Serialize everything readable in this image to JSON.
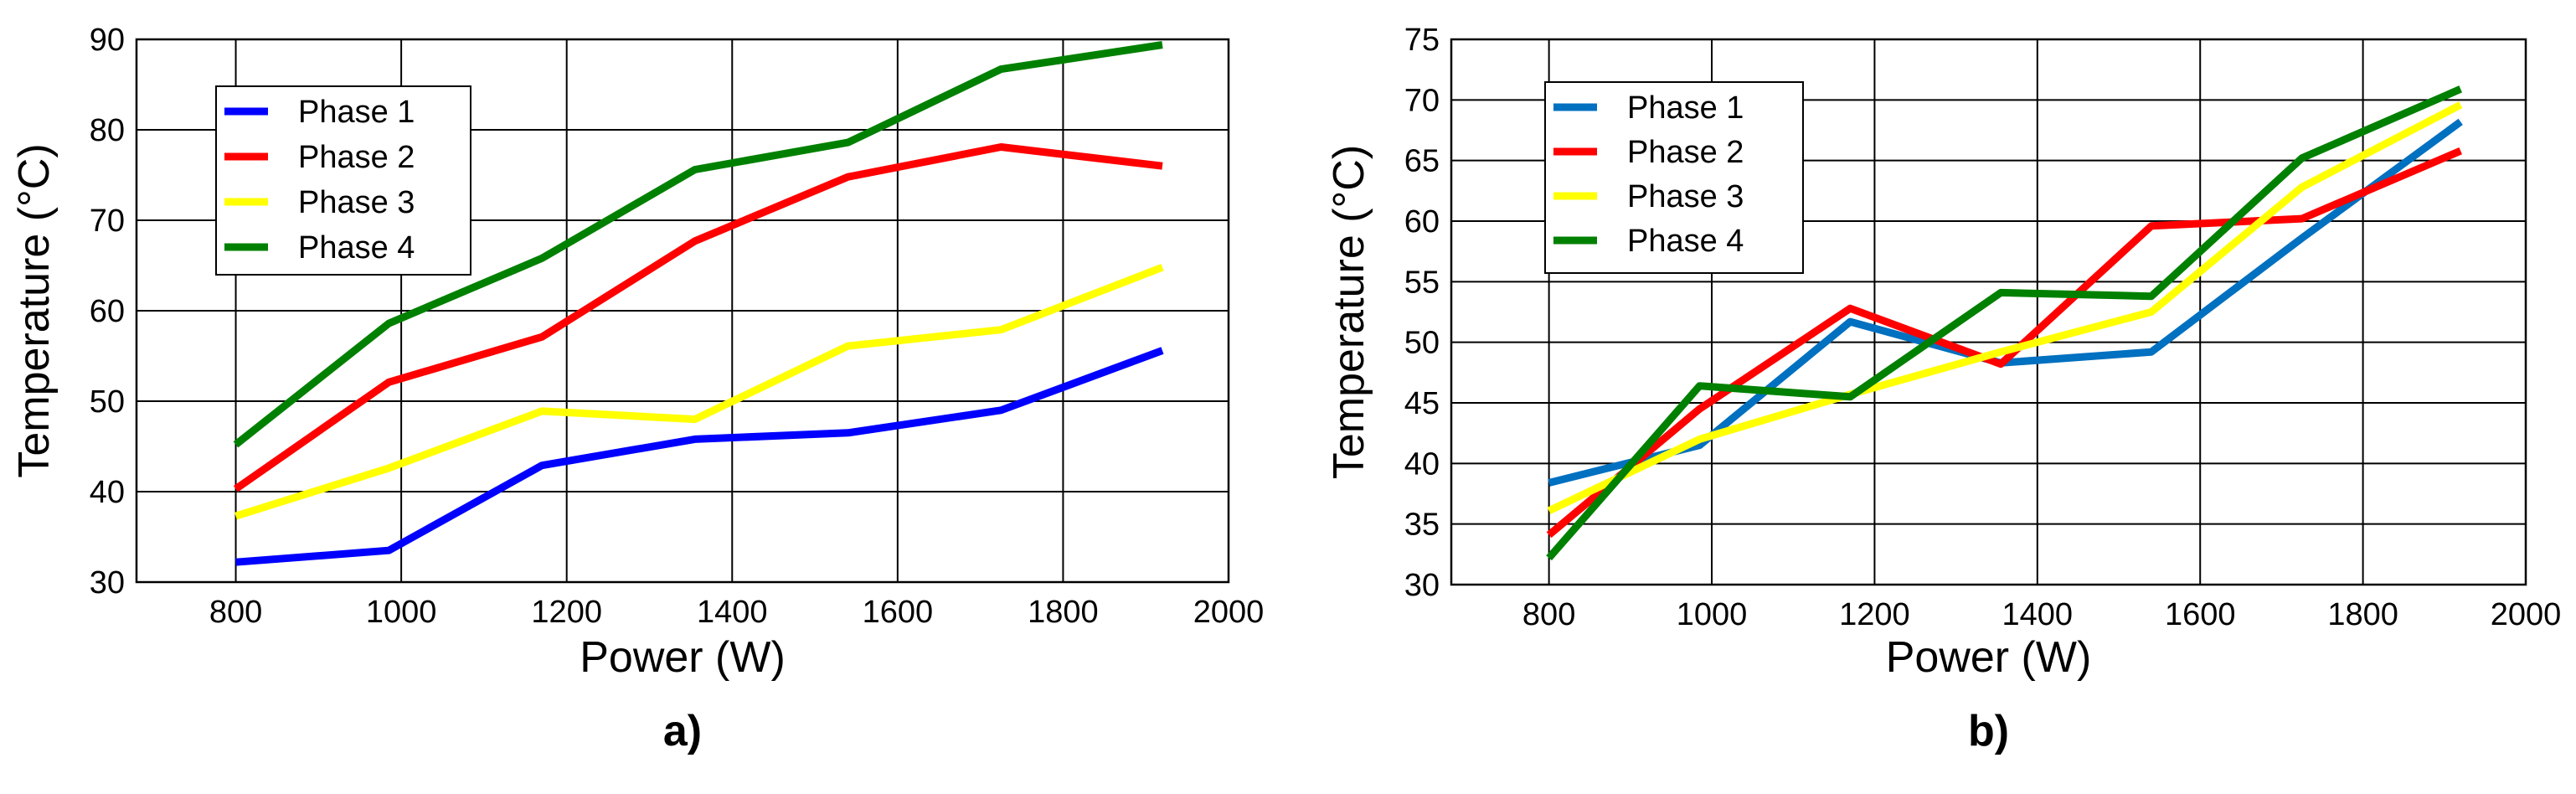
{
  "chart_data": [
    {
      "type": "line",
      "panel_label": "a)",
      "xlabel": "Power (W)",
      "ylabel": "Temperature (°C)",
      "xlim": [
        680,
        2000
      ],
      "ylim": [
        30,
        90
      ],
      "xticks": [
        800,
        1000,
        1200,
        1400,
        1600,
        1800,
        2000
      ],
      "yticks": [
        30,
        40,
        50,
        60,
        70,
        80,
        90
      ],
      "grid": true,
      "legend_position": "top-left",
      "x": [
        800,
        985,
        1170,
        1355,
        1540,
        1725,
        1920
      ],
      "series": [
        {
          "name": "Phase 1",
          "color": "#0000ff",
          "values": [
            32.2,
            33.5,
            42.9,
            45.8,
            46.5,
            49,
            55.6
          ]
        },
        {
          "name": "Phase 2",
          "color": "#ff0000",
          "values": [
            40.3,
            52.1,
            57.1,
            67.7,
            74.8,
            78.1,
            76
          ]
        },
        {
          "name": "Phase 3",
          "color": "#ffff00",
          "values": [
            37.3,
            42.6,
            48.9,
            48,
            56.1,
            57.9,
            64.8
          ]
        },
        {
          "name": "Phase 4",
          "color": "#008000",
          "values": [
            45.2,
            58.6,
            65.8,
            75.6,
            78.6,
            86.7,
            89.4
          ]
        }
      ]
    },
    {
      "type": "line",
      "panel_label": "b)",
      "xlabel": "Power (W)",
      "ylabel": "Temperature (°C)",
      "xlim": [
        680,
        2000
      ],
      "ylim": [
        30,
        75
      ],
      "xticks": [
        800,
        1000,
        1200,
        1400,
        1600,
        1800,
        2000
      ],
      "yticks": [
        30,
        35,
        40,
        45,
        50,
        55,
        60,
        65,
        70,
        75
      ],
      "grid": true,
      "legend_position": "top-left",
      "x": [
        800,
        985,
        1170,
        1355,
        1540,
        1725,
        1920
      ],
      "series": [
        {
          "name": "Phase 1",
          "color": "#0070c0",
          "values": [
            38.4,
            41.5,
            51.7,
            48.3,
            49.2,
            58.6,
            68.2
          ]
        },
        {
          "name": "Phase 2",
          "color": "#ff0000",
          "values": [
            34.1,
            44.5,
            52.8,
            48.2,
            59.6,
            60.2,
            65.8
          ]
        },
        {
          "name": "Phase 3",
          "color": "#ffff00",
          "values": [
            36.1,
            42,
            45.7,
            49.2,
            52.5,
            62.8,
            69.6
          ]
        },
        {
          "name": "Phase 4",
          "color": "#008000",
          "values": [
            32.2,
            46.4,
            45.5,
            54.1,
            53.8,
            65.2,
            70.9
          ]
        }
      ]
    }
  ]
}
